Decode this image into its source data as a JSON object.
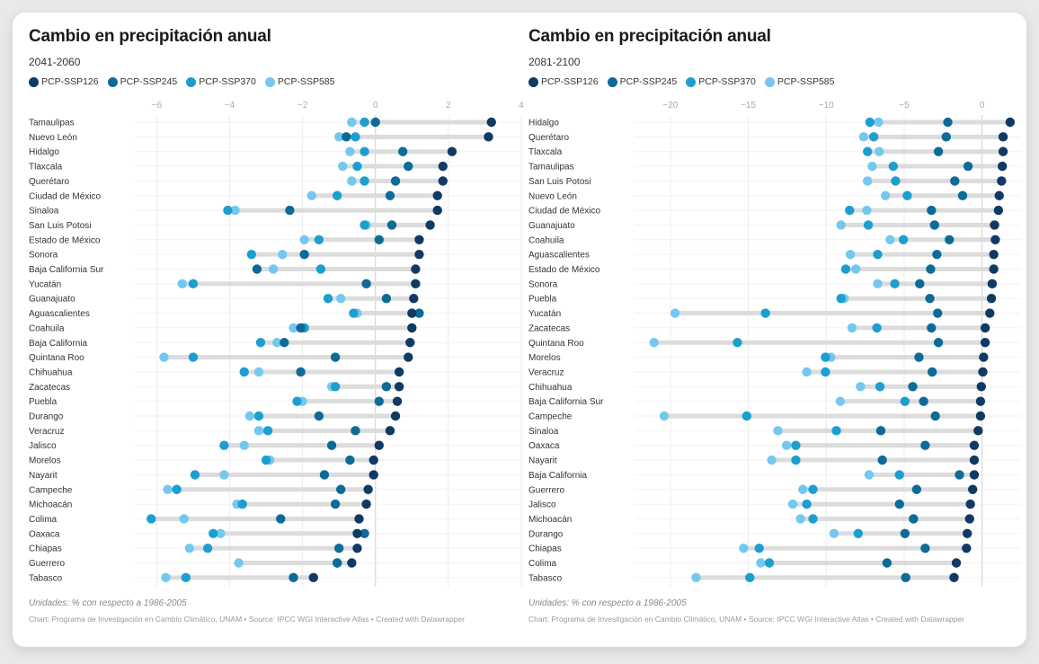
{
  "legend": [
    {
      "key": "ssp126",
      "label": "PCP-SSP126",
      "color": "#0f3a64"
    },
    {
      "key": "ssp245",
      "label": "PCP-SSP245",
      "color": "#0d6b97"
    },
    {
      "key": "ssp370",
      "label": "PCP-SSP370",
      "color": "#1c9fd0"
    },
    {
      "key": "ssp585",
      "label": "PCP-SSP585",
      "color": "#74c8f0"
    }
  ],
  "connector_color": "#dcdcdc",
  "chart_data": [
    {
      "type": "dot-range",
      "title": "Cambio en precipitación anual",
      "subtitle": "2041-2060",
      "note": "Unidades: % con respecto a 1986-2005",
      "credit": "Chart: Programa de Investigación en Cambio Climático, UNAM • Source: IPCC WGI Interactive Atlas • Created with Datawrapper",
      "xlim": [
        -6.6,
        4.0
      ],
      "xticks": [
        -6,
        -4,
        -2,
        0,
        2,
        4
      ],
      "tick_labels": [
        "−6",
        "−4",
        "−2",
        "0",
        "2",
        "4"
      ],
      "xlabel": "",
      "ylabel": "",
      "grid": true,
      "legend_position": "top-left",
      "rows": [
        {
          "state": "Tamaulipas",
          "ssp126": 3.18,
          "ssp245": 0.0,
          "ssp370": -0.3,
          "ssp585": -0.65
        },
        {
          "state": "Nuevo León",
          "ssp126": 3.1,
          "ssp245": -0.8,
          "ssp370": -0.55,
          "ssp585": -1.0
        },
        {
          "state": "Hidalgo",
          "ssp126": 2.1,
          "ssp245": 0.75,
          "ssp370": -0.3,
          "ssp585": -0.7
        },
        {
          "state": "Tlaxcala",
          "ssp126": 1.85,
          "ssp245": 0.9,
          "ssp370": -0.5,
          "ssp585": -0.9
        },
        {
          "state": "Querétaro",
          "ssp126": 1.85,
          "ssp245": 0.55,
          "ssp370": -0.3,
          "ssp585": -0.65
        },
        {
          "state": "Ciudad de México",
          "ssp126": 1.7,
          "ssp245": 0.4,
          "ssp370": -1.05,
          "ssp585": -1.75
        },
        {
          "state": "Sinaloa",
          "ssp126": 1.7,
          "ssp245": -2.35,
          "ssp370": -4.05,
          "ssp585": -3.85
        },
        {
          "state": "San Luis Potosi",
          "ssp126": 1.5,
          "ssp245": 0.45,
          "ssp370": -0.3,
          "ssp585": -0.25
        },
        {
          "state": "Estado de México",
          "ssp126": 1.2,
          "ssp245": 0.1,
          "ssp370": -1.55,
          "ssp585": -1.95
        },
        {
          "state": "Sonora",
          "ssp126": 1.2,
          "ssp245": -1.95,
          "ssp370": -3.4,
          "ssp585": -2.55
        },
        {
          "state": "Baja California Sur",
          "ssp126": 1.1,
          "ssp245": -3.25,
          "ssp370": -1.5,
          "ssp585": -2.8
        },
        {
          "state": "Yucatán",
          "ssp126": 1.1,
          "ssp245": -0.25,
          "ssp370": -5.0,
          "ssp585": -5.3
        },
        {
          "state": "Guanajuato",
          "ssp126": 1.05,
          "ssp245": 0.3,
          "ssp370": -1.3,
          "ssp585": -0.95
        },
        {
          "state": "Aguascalientes",
          "ssp126": 1.0,
          "ssp245": 1.2,
          "ssp370": -0.6,
          "ssp585": -0.5
        },
        {
          "state": "Coahuila",
          "ssp126": 1.0,
          "ssp245": -2.05,
          "ssp370": -1.95,
          "ssp585": -2.25
        },
        {
          "state": "Baja California",
          "ssp126": 0.95,
          "ssp245": -2.5,
          "ssp370": -3.15,
          "ssp585": -2.7
        },
        {
          "state": "Quintana Roo",
          "ssp126": 0.9,
          "ssp245": -1.1,
          "ssp370": -5.0,
          "ssp585": -5.8
        },
        {
          "state": "Chihuahua",
          "ssp126": 0.65,
          "ssp245": -2.05,
          "ssp370": -3.6,
          "ssp585": -3.2
        },
        {
          "state": "Zacatecas",
          "ssp126": 0.65,
          "ssp245": 0.3,
          "ssp370": -1.1,
          "ssp585": -1.2
        },
        {
          "state": "Puebla",
          "ssp126": 0.6,
          "ssp245": 0.1,
          "ssp370": -2.15,
          "ssp585": -2.0
        },
        {
          "state": "Durango",
          "ssp126": 0.55,
          "ssp245": -1.55,
          "ssp370": -3.2,
          "ssp585": -3.45
        },
        {
          "state": "Veracruz",
          "ssp126": 0.4,
          "ssp245": -0.55,
          "ssp370": -2.95,
          "ssp585": -3.2
        },
        {
          "state": "Jalisco",
          "ssp126": 0.1,
          "ssp245": -1.2,
          "ssp370": -4.15,
          "ssp585": -3.6
        },
        {
          "state": "Morelos",
          "ssp126": -0.05,
          "ssp245": -0.7,
          "ssp370": -3.0,
          "ssp585": -2.9
        },
        {
          "state": "Nayarit",
          "ssp126": -0.05,
          "ssp245": -1.4,
          "ssp370": -4.95,
          "ssp585": -4.15
        },
        {
          "state": "Campeche",
          "ssp126": -0.2,
          "ssp245": -0.95,
          "ssp370": -5.45,
          "ssp585": -5.7
        },
        {
          "state": "Michoacán",
          "ssp126": -0.25,
          "ssp245": -1.1,
          "ssp370": -3.65,
          "ssp585": -3.8
        },
        {
          "state": "Colima",
          "ssp126": -0.45,
          "ssp245": -2.6,
          "ssp370": -6.15,
          "ssp585": -5.25
        },
        {
          "state": "Oaxaca",
          "ssp126": -0.5,
          "ssp245": -0.3,
          "ssp370": -4.45,
          "ssp585": -4.25
        },
        {
          "state": "Chiapas",
          "ssp126": -0.5,
          "ssp245": -1.0,
          "ssp370": -4.6,
          "ssp585": -5.1
        },
        {
          "state": "Guerrero",
          "ssp126": -0.65,
          "ssp245": -1.05,
          "ssp370": -1.05,
          "ssp585": -3.75
        },
        {
          "state": "Tabasco",
          "ssp126": -1.7,
          "ssp245": -2.25,
          "ssp370": -5.2,
          "ssp585": -5.75
        }
      ]
    },
    {
      "type": "dot-range",
      "title": "Cambio en precipitación anual",
      "subtitle": "2081-2100",
      "note": "Unidades: % con respecto a 1986-2005",
      "credit": "Chart: Programa de Investigación en Cambio Climático, UNAM • Source: IPCC WGI Interactive Atlas • Created with Datawrapper",
      "xlim": [
        -22.3,
        2.5
      ],
      "xticks": [
        -20,
        -15,
        -10,
        -5,
        0
      ],
      "tick_labels": [
        "−20",
        "−15",
        "−10",
        "−5",
        "0"
      ],
      "xlabel": "",
      "ylabel": "",
      "grid": true,
      "legend_position": "top-left",
      "rows": [
        {
          "state": "Hidalgo",
          "ssp126": 1.8,
          "ssp245": -2.2,
          "ssp370": -7.2,
          "ssp585": -6.65
        },
        {
          "state": "Querétaro",
          "ssp126": 1.35,
          "ssp245": -2.3,
          "ssp370": -6.95,
          "ssp585": -7.6
        },
        {
          "state": "Tlaxcala",
          "ssp126": 1.35,
          "ssp245": -2.8,
          "ssp370": -7.35,
          "ssp585": -6.6
        },
        {
          "state": "Tamaulipas",
          "ssp126": 1.3,
          "ssp245": -0.9,
          "ssp370": -5.7,
          "ssp585": -7.05
        },
        {
          "state": "San Luis Potosi",
          "ssp126": 1.25,
          "ssp245": -1.75,
          "ssp370": -5.55,
          "ssp585": -7.35
        },
        {
          "state": "Nuevo León",
          "ssp126": 1.1,
          "ssp245": -1.25,
          "ssp370": -4.8,
          "ssp585": -6.2
        },
        {
          "state": "Ciudad de México",
          "ssp126": 1.05,
          "ssp245": -3.25,
          "ssp370": -8.5,
          "ssp585": -7.4
        },
        {
          "state": "Guanajuato",
          "ssp126": 0.8,
          "ssp245": -3.05,
          "ssp370": -7.3,
          "ssp585": -9.05
        },
        {
          "state": "Coahuila",
          "ssp126": 0.85,
          "ssp245": -2.1,
          "ssp370": -5.05,
          "ssp585": -5.9
        },
        {
          "state": "Aguascalientes",
          "ssp126": 0.75,
          "ssp245": -2.9,
          "ssp370": -6.7,
          "ssp585": -8.45
        },
        {
          "state": "Estado de México",
          "ssp126": 0.75,
          "ssp245": -3.3,
          "ssp370": -8.75,
          "ssp585": -8.1
        },
        {
          "state": "Sonora",
          "ssp126": 0.65,
          "ssp245": -4.0,
          "ssp370": -5.6,
          "ssp585": -6.7
        },
        {
          "state": "Puebla",
          "ssp126": 0.6,
          "ssp245": -3.35,
          "ssp370": -9.05,
          "ssp585": -8.85
        },
        {
          "state": "Yucatán",
          "ssp126": 0.5,
          "ssp245": -2.85,
          "ssp370": -13.9,
          "ssp585": -19.7
        },
        {
          "state": "Zacatecas",
          "ssp126": 0.2,
          "ssp245": -3.25,
          "ssp370": -6.75,
          "ssp585": -8.35
        },
        {
          "state": "Quintana Roo",
          "ssp126": 0.2,
          "ssp245": -2.8,
          "ssp370": -15.7,
          "ssp585": -21.05
        },
        {
          "state": "Morelos",
          "ssp126": 0.1,
          "ssp245": -4.05,
          "ssp370": -10.05,
          "ssp585": -9.7
        },
        {
          "state": "Veracruz",
          "ssp126": 0.05,
          "ssp245": -3.2,
          "ssp370": -10.05,
          "ssp585": -11.25
        },
        {
          "state": "Chihuahua",
          "ssp126": -0.05,
          "ssp245": -4.45,
          "ssp370": -6.55,
          "ssp585": -7.8
        },
        {
          "state": "Baja California Sur",
          "ssp126": -0.1,
          "ssp245": -3.75,
          "ssp370": -4.95,
          "ssp585": -9.1
        },
        {
          "state": "Campeche",
          "ssp126": -0.1,
          "ssp245": -3.0,
          "ssp370": -15.1,
          "ssp585": -20.4
        },
        {
          "state": "Sinaloa",
          "ssp126": -0.25,
          "ssp245": -6.5,
          "ssp370": -9.35,
          "ssp585": -13.1
        },
        {
          "state": "Oaxaca",
          "ssp126": -0.5,
          "ssp245": -3.65,
          "ssp370": -11.95,
          "ssp585": -12.55
        },
        {
          "state": "Nayarit",
          "ssp126": -0.5,
          "ssp245": -6.4,
          "ssp370": -11.95,
          "ssp585": -13.5
        },
        {
          "state": "Baja California",
          "ssp126": -0.5,
          "ssp245": -1.45,
          "ssp370": -5.3,
          "ssp585": -7.25
        },
        {
          "state": "Guerrero",
          "ssp126": -0.6,
          "ssp245": -4.2,
          "ssp370": -10.85,
          "ssp585": -11.5
        },
        {
          "state": "Jalisco",
          "ssp126": -0.75,
          "ssp245": -5.3,
          "ssp370": -11.25,
          "ssp585": -12.15
        },
        {
          "state": "Michoacán",
          "ssp126": -0.8,
          "ssp245": -4.4,
          "ssp370": -10.85,
          "ssp585": -11.65
        },
        {
          "state": "Durango",
          "ssp126": -0.95,
          "ssp245": -4.95,
          "ssp370": -7.95,
          "ssp585": -9.5
        },
        {
          "state": "Chiapas",
          "ssp126": -1.0,
          "ssp245": -3.65,
          "ssp370": -14.3,
          "ssp585": -15.3
        },
        {
          "state": "Colima",
          "ssp126": -1.65,
          "ssp245": -6.1,
          "ssp370": -13.65,
          "ssp585": -14.2
        },
        {
          "state": "Tabasco",
          "ssp126": -1.8,
          "ssp245": -4.9,
          "ssp370": -14.9,
          "ssp585": -18.35
        }
      ]
    }
  ]
}
